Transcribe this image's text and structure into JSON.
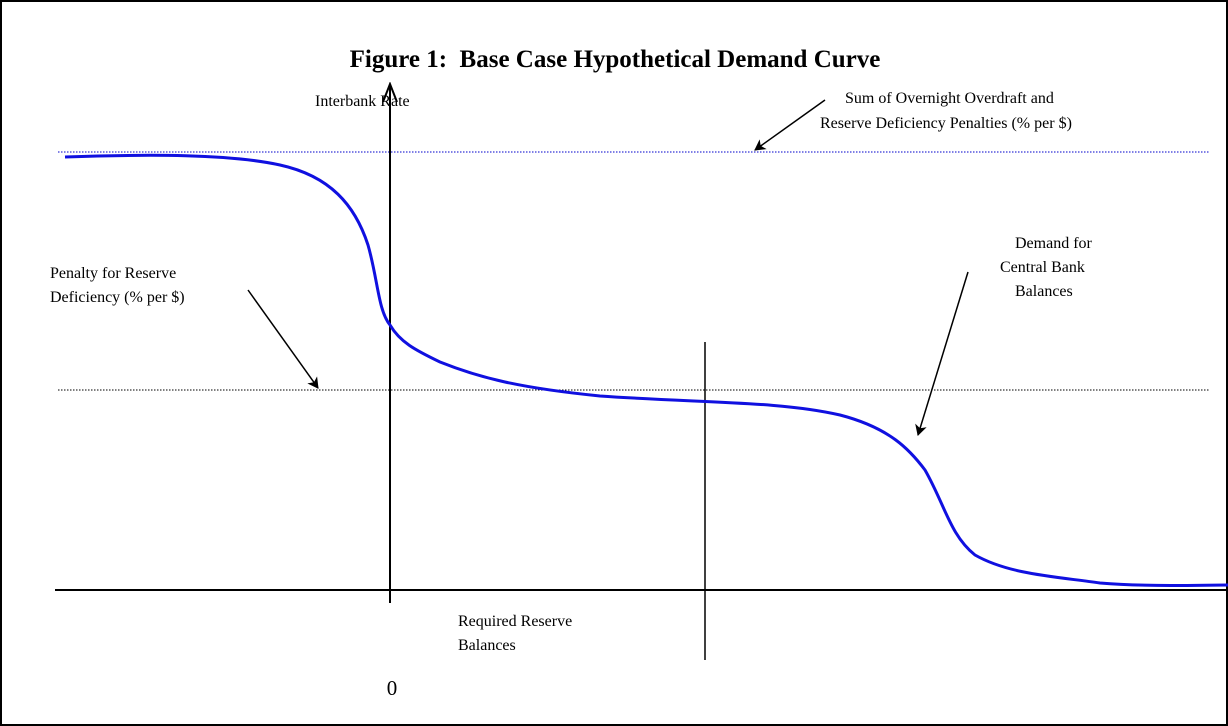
{
  "title": "Figure 1:  Base Case Hypothetical Demand Curve",
  "labels": {
    "y_axis": "Interbank Rate",
    "penalty_sum": [
      "Sum of Overnight Overdraft and",
      "Reserve Deficiency Penalties (% per $)"
    ],
    "penalty_reserve": [
      "Penalty for Reserve",
      "Deficiency (% per $)"
    ],
    "demand": [
      "Demand for",
      "Central Bank",
      "Balances"
    ],
    "required": [
      "Required Reserve",
      "Balances"
    ],
    "origin": "0"
  }
}
